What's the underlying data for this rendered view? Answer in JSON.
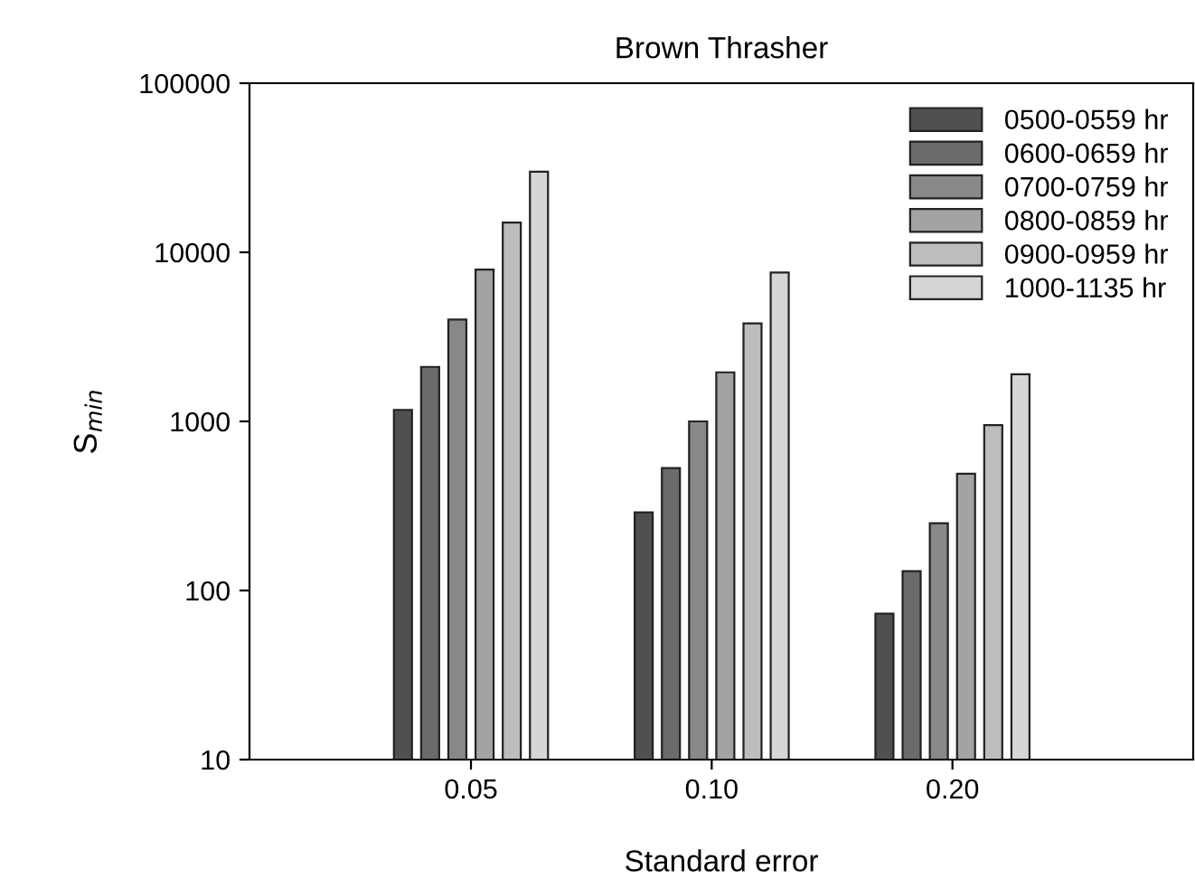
{
  "chart_data": {
    "type": "bar",
    "title": "Brown Thrasher",
    "xlabel": "Standard error",
    "ylabel": "S$_{min}$",
    "categories": [
      "0.05",
      "0.10",
      "0.20"
    ],
    "series": [
      {
        "name": "0500-0559 hr",
        "color": "#505052",
        "values": [
          1170,
          290,
          73
        ]
      },
      {
        "name": "0600-0659 hr",
        "color": "#6b6b6e",
        "values": [
          2100,
          530,
          130
        ]
      },
      {
        "name": "0700-0759 hr",
        "color": "#88888b",
        "values": [
          4000,
          1000,
          250
        ]
      },
      {
        "name": "0800-0859 hr",
        "color": "#a3a3a6",
        "values": [
          7900,
          1950,
          490
        ]
      },
      {
        "name": "0900-0959 hr",
        "color": "#bdbdc0",
        "values": [
          15000,
          3800,
          950
        ]
      },
      {
        "name": "1000-1135 hr",
        "color": "#d6d6d8",
        "values": [
          30000,
          7600,
          1900
        ]
      }
    ],
    "log": "y",
    "ylim": [
      10,
      100000
    ],
    "yticks": [
      10,
      100,
      1000,
      10000,
      100000
    ],
    "grid": false,
    "legend": "top right"
  }
}
